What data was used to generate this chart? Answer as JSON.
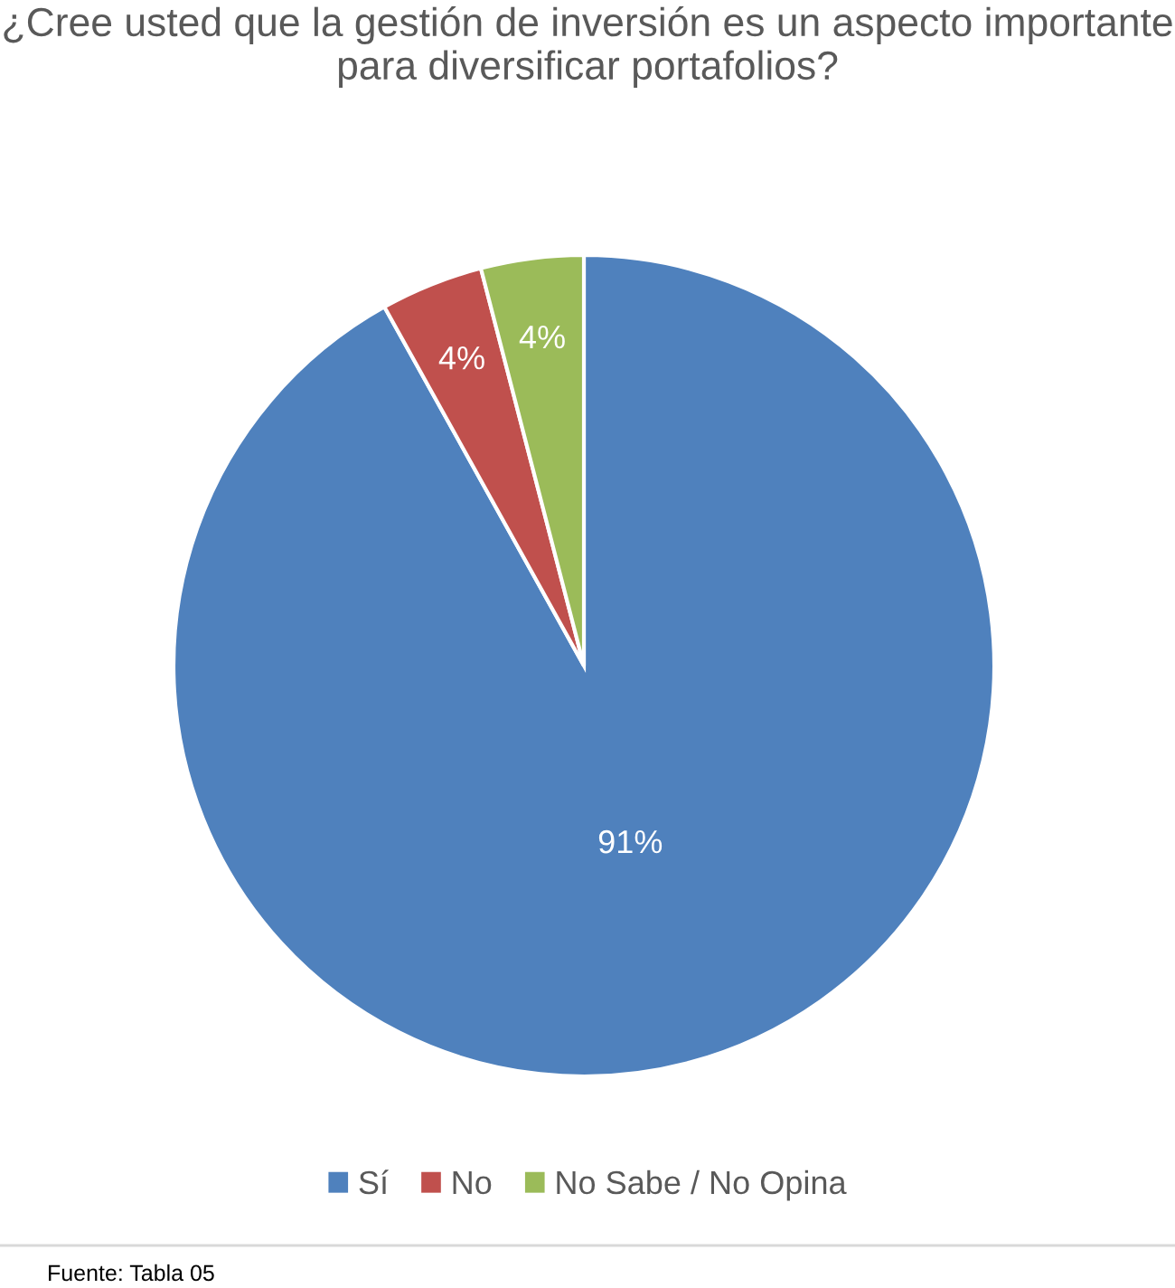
{
  "chart_data": {
    "type": "pie",
    "title": "¿Cree usted que la gestión de inversión es un aspecto importante para diversificar portafolios?",
    "categories": [
      "Sí",
      "No",
      "No Sabe / No Opina"
    ],
    "values": [
      91,
      4,
      4
    ],
    "colors": [
      "#4f81bd",
      "#c0504d",
      "#9bbb59"
    ],
    "value_labels": [
      "91%",
      "4%",
      "4%"
    ],
    "legend": "bottom",
    "annotations": [
      "Fuente: Tabla 05"
    ]
  }
}
